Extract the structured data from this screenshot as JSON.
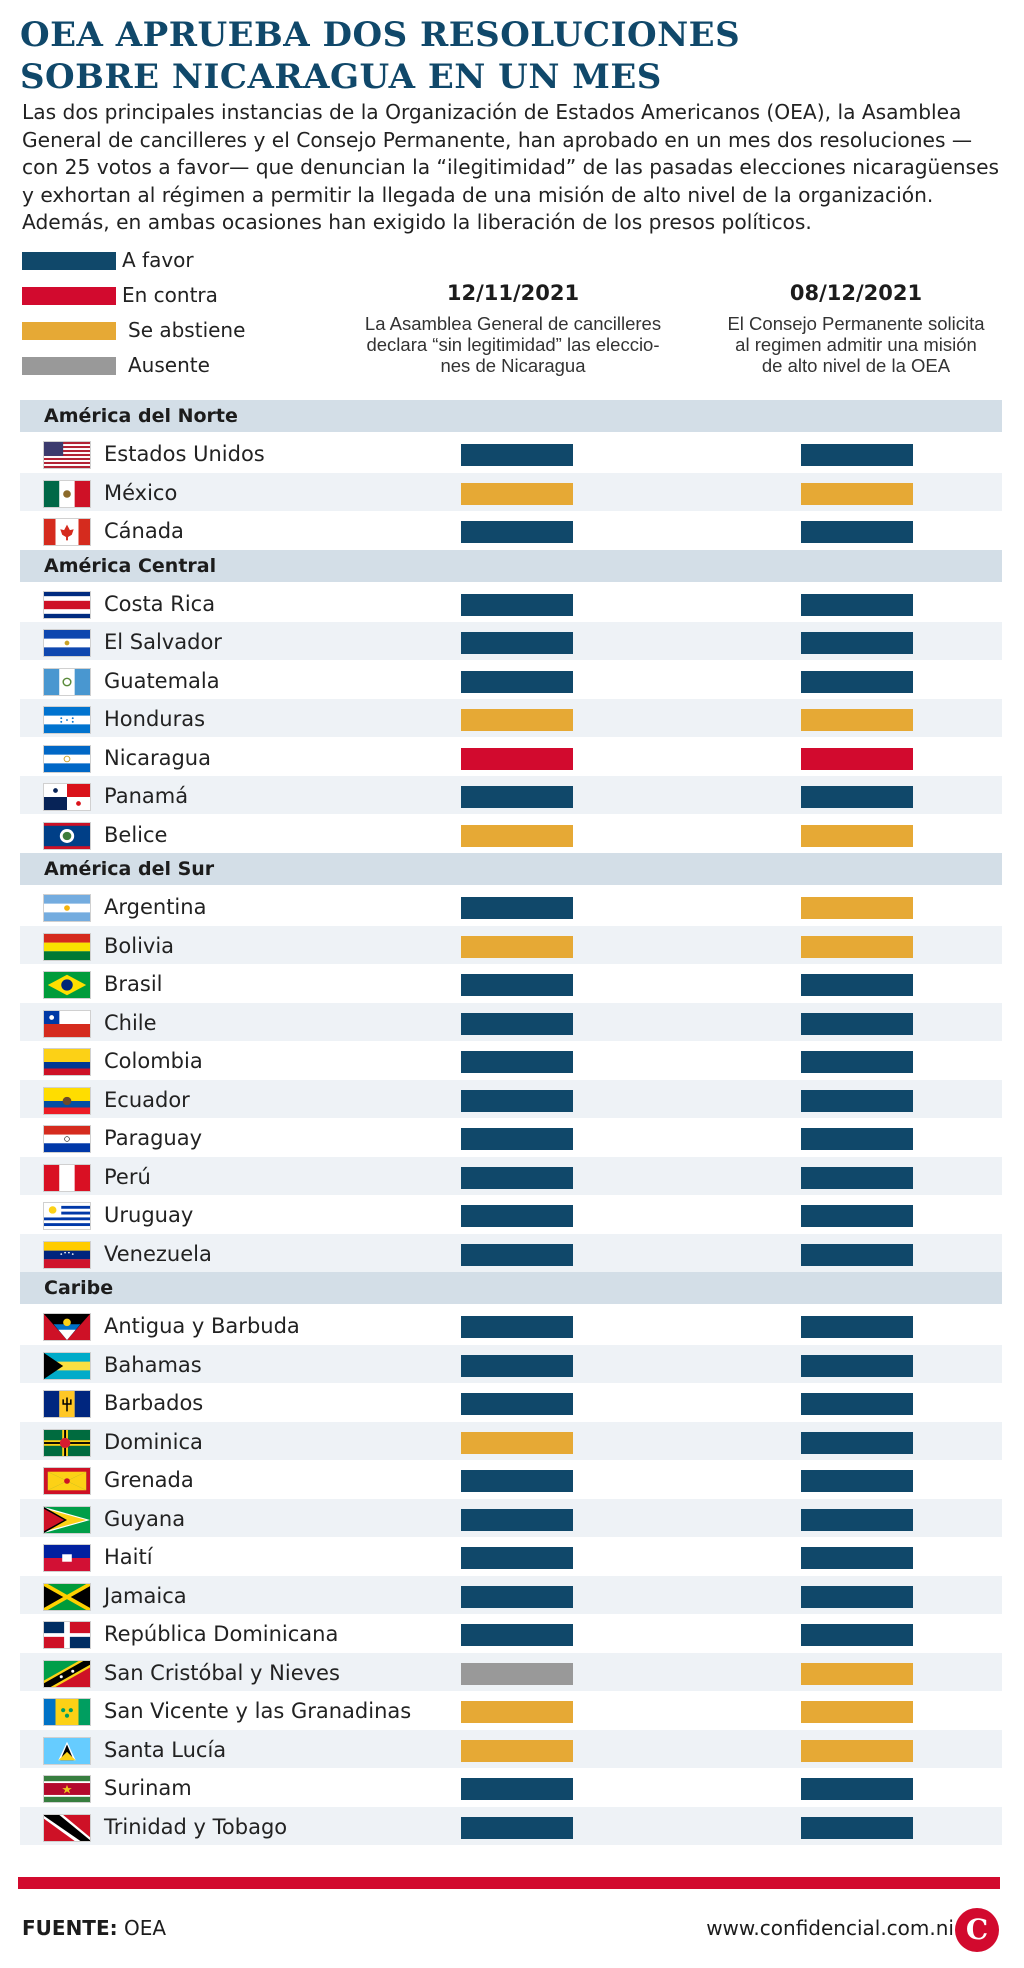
{
  "title": {
    "line1": "OEA APRUEBA DOS RESOLUCIONES",
    "line2": "SOBRE NICARAGUA EN UN MES"
  },
  "intro": "Las dos principales instancias de la Organización de Estados Americanos (OEA), la Asamblea General de cancilleres y el Consejo Permanente, han aprobado en un mes dos resoluciones —con 25 votos a favor— que denuncian la “ilegitimidad” de las pasadas elecciones nicaragüenses y exhortan al régimen a permitir la llegada de una misión de alto nivel de la organización. Además, en ambas ocasiones han exigido la liberación de los presos políticos.",
  "legend": [
    {
      "label": "A favor",
      "color": "#10486a"
    },
    {
      "label": "En contra",
      "color": "#d20a2e"
    },
    {
      "label": "Se abstiene",
      "color": "#e6a935"
    },
    {
      "label": "Ausente",
      "color": "#999999"
    }
  ],
  "columns": [
    {
      "date": "12/11/2021",
      "desc1": "La Asamblea General de cancilleres",
      "desc2": "declara “sin legitimidad” las eleccio-",
      "desc3": "nes de Nicaragua"
    },
    {
      "date": "08/12/2021",
      "desc1": "El Consejo Permanente solicita",
      "desc2": "al regimen admitir una misión",
      "desc3": "de alto nivel de la OEA"
    }
  ],
  "chart_data": {
    "type": "table",
    "columns": [
      "12/11/2021",
      "08/12/2021"
    ],
    "categories": [
      "A favor",
      "En contra",
      "Se abstiene",
      "Ausente"
    ],
    "groups": [
      {
        "name": "América del Norte",
        "rows": [
          {
            "country": "Estados Unidos",
            "flag": "usa-flag",
            "votes": [
              "A favor",
              "A favor"
            ]
          },
          {
            "country": "México",
            "flag": "mexico-flag",
            "votes": [
              "Se abstiene",
              "Se abstiene"
            ]
          },
          {
            "country": "Cánada",
            "flag": "canada-flag",
            "votes": [
              "A favor",
              "A favor"
            ]
          }
        ]
      },
      {
        "name": "América Central",
        "rows": [
          {
            "country": "Costa Rica",
            "flag": "costa-rica-flag",
            "votes": [
              "A favor",
              "A favor"
            ]
          },
          {
            "country": "El Salvador",
            "flag": "el-salvador-flag",
            "votes": [
              "A favor",
              "A favor"
            ]
          },
          {
            "country": "Guatemala",
            "flag": "guatemala-flag",
            "votes": [
              "A favor",
              "A favor"
            ]
          },
          {
            "country": "Honduras",
            "flag": "honduras-flag",
            "votes": [
              "Se abstiene",
              "Se abstiene"
            ]
          },
          {
            "country": "Nicaragua",
            "flag": "nicaragua-flag",
            "votes": [
              "En contra",
              "En contra"
            ]
          },
          {
            "country": "Panamá",
            "flag": "panama-flag",
            "votes": [
              "A favor",
              "A favor"
            ]
          },
          {
            "country": "Belice",
            "flag": "belize-flag",
            "votes": [
              "Se abstiene",
              "Se abstiene"
            ]
          }
        ]
      },
      {
        "name": "América del Sur",
        "rows": [
          {
            "country": "Argentina",
            "flag": "argentina-flag",
            "votes": [
              "A favor",
              "Se abstiene"
            ]
          },
          {
            "country": "Bolivia",
            "flag": "bolivia-flag",
            "votes": [
              "Se abstiene",
              "Se abstiene"
            ]
          },
          {
            "country": "Brasil",
            "flag": "brazil-flag",
            "votes": [
              "A favor",
              "A favor"
            ]
          },
          {
            "country": "Chile",
            "flag": "chile-flag",
            "votes": [
              "A favor",
              "A favor"
            ]
          },
          {
            "country": "Colombia",
            "flag": "colombia-flag",
            "votes": [
              "A favor",
              "A favor"
            ]
          },
          {
            "country": "Ecuador",
            "flag": "ecuador-flag",
            "votes": [
              "A favor",
              "A favor"
            ]
          },
          {
            "country": "Paraguay",
            "flag": "paraguay-flag",
            "votes": [
              "A favor",
              "A favor"
            ]
          },
          {
            "country": "Perú",
            "flag": "peru-flag",
            "votes": [
              "A favor",
              "A favor"
            ]
          },
          {
            "country": "Uruguay",
            "flag": "uruguay-flag",
            "votes": [
              "A favor",
              "A favor"
            ]
          },
          {
            "country": "Venezuela",
            "flag": "venezuela-flag",
            "votes": [
              "A favor",
              "A favor"
            ]
          }
        ]
      },
      {
        "name": "Caribe",
        "rows": [
          {
            "country": "Antigua y Barbuda",
            "flag": "antigua-flag",
            "votes": [
              "A favor",
              "A favor"
            ]
          },
          {
            "country": "Bahamas",
            "flag": "bahamas-flag",
            "votes": [
              "A favor",
              "A favor"
            ]
          },
          {
            "country": "Barbados",
            "flag": "barbados-flag",
            "votes": [
              "A favor",
              "A favor"
            ]
          },
          {
            "country": "Dominica",
            "flag": "dominica-flag",
            "votes": [
              "Se abstiene",
              "A favor"
            ]
          },
          {
            "country": "Grenada",
            "flag": "grenada-flag",
            "votes": [
              "A favor",
              "A favor"
            ]
          },
          {
            "country": "Guyana",
            "flag": "guyana-flag",
            "votes": [
              "A favor",
              "A favor"
            ]
          },
          {
            "country": "Haití",
            "flag": "haiti-flag",
            "votes": [
              "A favor",
              "A favor"
            ]
          },
          {
            "country": "Jamaica",
            "flag": "jamaica-flag",
            "votes": [
              "A favor",
              "A favor"
            ]
          },
          {
            "country": "República Dominicana",
            "flag": "dominican-republic-flag",
            "votes": [
              "A favor",
              "A favor"
            ]
          },
          {
            "country": "San Cristóbal y Nieves",
            "flag": "saint-kitts-flag",
            "votes": [
              "Ausente",
              "Se abstiene"
            ]
          },
          {
            "country": "San Vicente y las Granadinas",
            "flag": "saint-vincent-flag",
            "votes": [
              "Se abstiene",
              "Se abstiene"
            ]
          },
          {
            "country": "Santa Lucía",
            "flag": "saint-lucia-flag",
            "votes": [
              "Se abstiene",
              "Se abstiene"
            ]
          },
          {
            "country": "Surinam",
            "flag": "suriname-flag",
            "votes": [
              "A favor",
              "A favor"
            ]
          },
          {
            "country": "Trinidad y Tobago",
            "flag": "trinidad-flag",
            "votes": [
              "A favor",
              "A favor"
            ]
          }
        ]
      }
    ]
  },
  "footer": {
    "source_label": "FUENTE:",
    "source_value": "OEA",
    "website": "www.confidencial.com.ni",
    "logo_letter": "C"
  },
  "colors": {
    "brand_red": "#d20a2e",
    "title_blue": "#10486a",
    "group_band": "#d3dee7",
    "alt_row": "#eef2f6"
  }
}
